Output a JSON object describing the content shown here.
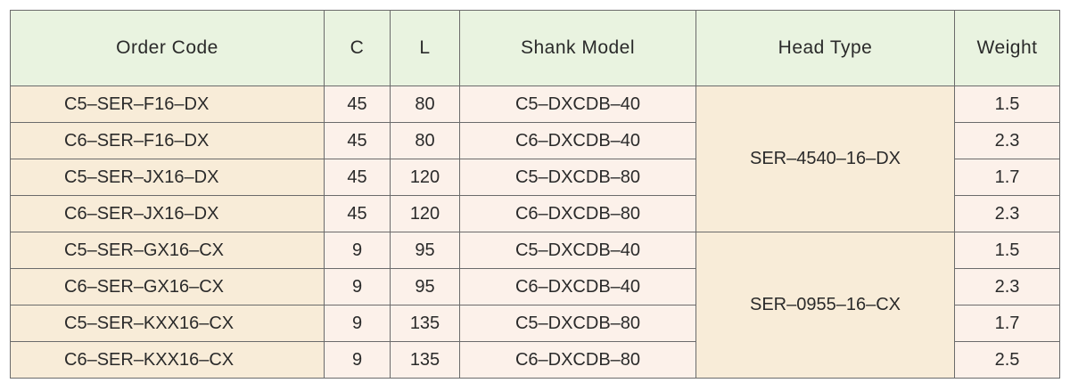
{
  "table": {
    "headers": {
      "order_code": "Order Code",
      "c": "C",
      "l": "L",
      "shank_model": "Shank Model",
      "head_type": "Head Type",
      "weight": "Weight"
    },
    "rows": [
      {
        "order_code": "C5–SER–F16–DX",
        "c": "45",
        "l": "80",
        "shank_model": "C5–DXCDB–40",
        "head_type": "SER–4540–16–DX",
        "weight": "1.5"
      },
      {
        "order_code": "C6–SER–F16–DX",
        "c": "45",
        "l": "80",
        "shank_model": "C6–DXCDB–40",
        "weight": "2.3"
      },
      {
        "order_code": "C5–SER–JX16–DX",
        "c": "45",
        "l": "120",
        "shank_model": "C5–DXCDB–80",
        "weight": "1.7"
      },
      {
        "order_code": "C6–SER–JX16–DX",
        "c": "45",
        "l": "120",
        "shank_model": "C6–DXCDB–80",
        "weight": "2.3"
      },
      {
        "order_code": "C5–SER–GX16–CX",
        "c": "9",
        "l": "95",
        "shank_model": "C5–DXCDB–40",
        "head_type": "SER–0955–16–CX",
        "weight": "1.5"
      },
      {
        "order_code": "C6–SER–GX16–CX",
        "c": "9",
        "l": "95",
        "shank_model": "C6–DXCDB–40",
        "weight": "2.3"
      },
      {
        "order_code": "C5–SER–KXX16–CX",
        "c": "9",
        "l": "135",
        "shank_model": "C5–DXCDB–80",
        "weight": "1.7"
      },
      {
        "order_code": "C6–SER–KXX16–CX",
        "c": "9",
        "l": "135",
        "shank_model": "C6–DXCDB–80",
        "weight": "2.5"
      }
    ]
  }
}
